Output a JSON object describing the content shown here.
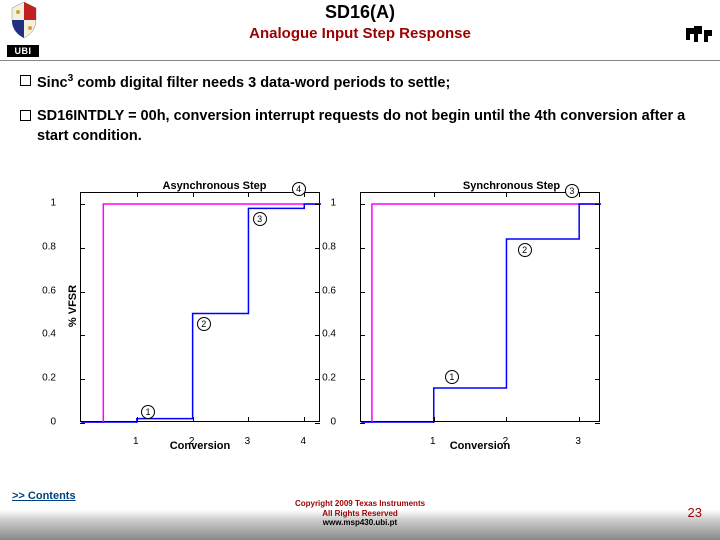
{
  "header": {
    "ubi_label": "UBI",
    "title": "SD16(A)",
    "subtitle": "Analogue Input Step Response"
  },
  "bullets": [
    {
      "html": "Sinc<sup>3</sup> comb digital filter needs 3 data-word periods to settle;"
    },
    {
      "html": "SD16INTDLY = 00h, conversion interrupt requests do not begin until the 4th conversion after a start condition."
    }
  ],
  "charts": {
    "ylabel": "% VFSR",
    "ylim": [
      0,
      1.05
    ],
    "yticks": [
      0,
      0.2,
      0.4,
      0.6,
      0.8,
      1
    ],
    "xlabel": "Conversion",
    "left": {
      "title": "Asynchronous Step",
      "xlim": [
        0,
        4.3
      ],
      "xticks": [
        1,
        2,
        3,
        4
      ],
      "step_color": "#ff00ff",
      "filter_color": "#0000ff",
      "step": [
        [
          0,
          0
        ],
        [
          0.4,
          0
        ],
        [
          0.4,
          1
        ],
        [
          4.3,
          1
        ]
      ],
      "filter": [
        [
          0,
          0
        ],
        [
          1,
          0
        ],
        [
          1,
          0.02
        ],
        [
          2,
          0.02
        ],
        [
          2,
          0.5
        ],
        [
          3,
          0.5
        ],
        [
          3,
          0.98
        ],
        [
          4,
          0.98
        ],
        [
          4,
          1
        ],
        [
          4.3,
          1
        ]
      ],
      "markers": [
        {
          "n": "1",
          "x": 1.2,
          "y": 0.05
        },
        {
          "n": "2",
          "x": 2.2,
          "y": 0.45
        },
        {
          "n": "3",
          "x": 3.2,
          "y": 0.93
        },
        {
          "n": "4",
          "x": 3.9,
          "y": 1.07
        }
      ]
    },
    "right": {
      "title": "Synchronous Step",
      "xlim": [
        0,
        3.3
      ],
      "xticks": [
        1,
        2,
        3
      ],
      "step_color": "#ff00ff",
      "filter_color": "#0000ff",
      "step": [
        [
          0,
          0
        ],
        [
          0.15,
          0
        ],
        [
          0.15,
          1
        ],
        [
          3.3,
          1
        ]
      ],
      "filter": [
        [
          0,
          0
        ],
        [
          1,
          0
        ],
        [
          1,
          0.16
        ],
        [
          2,
          0.16
        ],
        [
          2,
          0.84
        ],
        [
          3,
          0.84
        ],
        [
          3,
          1
        ],
        [
          3.3,
          1
        ]
      ],
      "markers": [
        {
          "n": "1",
          "x": 1.25,
          "y": 0.21
        },
        {
          "n": "2",
          "x": 2.25,
          "y": 0.79
        },
        {
          "n": "3",
          "x": 2.9,
          "y": 1.06
        }
      ]
    }
  },
  "footer": {
    "contents_link": ">> Contents",
    "copyright1": "Copyright  2009 Texas Instruments",
    "copyright2": "All Rights Reserved",
    "url": "www.msp430.ubi.pt",
    "page": "23"
  },
  "colors": {
    "accent": "#9c0000",
    "link": "#004080"
  }
}
